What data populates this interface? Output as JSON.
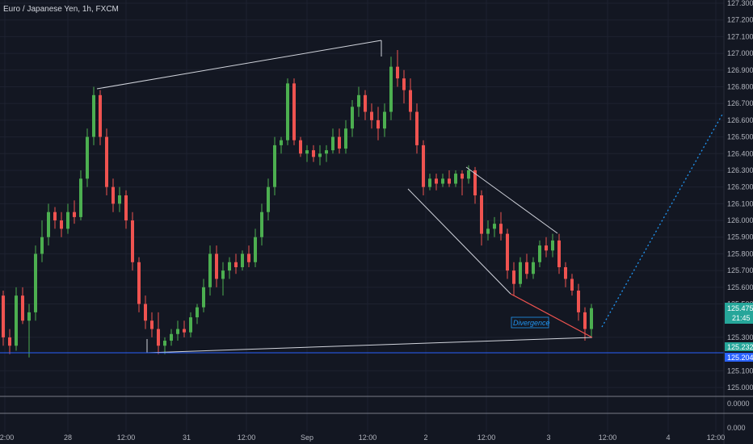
{
  "header": {
    "symbol_line": "Euro / Japanese Yen, 1h, FXCM"
  },
  "colors": {
    "background": "#131722",
    "grid": "#1e2230",
    "up": "#26a69a",
    "up_alt": "#4caf50",
    "down": "#ef5350",
    "price_tag_green": "#26a69a",
    "price_tag_blue": "#2962ff",
    "trendline": "#d1d4dc",
    "divergence": "#ef5350",
    "projection": "#2196f3"
  },
  "annotations": {
    "divergence_label": "Divergence"
  },
  "price_tags": {
    "last_price": "125.475",
    "countdown": "21:45",
    "level_a": "125.232",
    "level_b": "125.204"
  },
  "chart_data": {
    "type": "candlestick",
    "title": "Euro / Japanese Yen, 1h, FXCM",
    "y_axis_ticks": [
      "127.300",
      "127.200",
      "127.100",
      "127.000",
      "126.900",
      "126.800",
      "126.700",
      "126.600",
      "126.500",
      "126.400",
      "126.300",
      "126.200",
      "126.100",
      "126.000",
      "125.900",
      "125.800",
      "125.700",
      "125.600",
      "125.500",
      "125.300",
      "125.100",
      "125.000"
    ],
    "x_axis_ticks": [
      "12:00",
      "28",
      "12:00",
      "31",
      "12:00",
      "Sep",
      "12:00",
      "2",
      "12:00",
      "3",
      "12:00",
      "4",
      "12:00"
    ],
    "ylim": [
      124.95,
      127.35
    ],
    "oscillator_ticks": [
      "0.0000",
      "0.000"
    ],
    "candles": [
      {
        "o": 125.55,
        "h": 125.58,
        "l": 125.25,
        "c": 125.3
      },
      {
        "o": 125.3,
        "h": 125.35,
        "l": 125.2,
        "c": 125.25
      },
      {
        "o": 125.25,
        "h": 125.6,
        "l": 125.22,
        "c": 125.55
      },
      {
        "o": 125.55,
        "h": 125.6,
        "l": 125.38,
        "c": 125.4
      },
      {
        "o": 125.4,
        "h": 125.5,
        "l": 125.18,
        "c": 125.45
      },
      {
        "o": 125.45,
        "h": 125.85,
        "l": 125.4,
        "c": 125.8
      },
      {
        "o": 125.8,
        "h": 126.0,
        "l": 125.75,
        "c": 125.9
      },
      {
        "o": 125.9,
        "h": 126.1,
        "l": 125.85,
        "c": 126.05
      },
      {
        "o": 126.05,
        "h": 126.08,
        "l": 125.95,
        "c": 126.0
      },
      {
        "o": 126.0,
        "h": 126.05,
        "l": 125.9,
        "c": 125.95
      },
      {
        "o": 125.95,
        "h": 126.1,
        "l": 125.92,
        "c": 126.05
      },
      {
        "o": 126.05,
        "h": 126.12,
        "l": 125.98,
        "c": 126.02
      },
      {
        "o": 126.02,
        "h": 126.3,
        "l": 126.0,
        "c": 126.25
      },
      {
        "o": 126.25,
        "h": 126.55,
        "l": 126.2,
        "c": 126.5
      },
      {
        "o": 126.5,
        "h": 126.8,
        "l": 126.45,
        "c": 126.75
      },
      {
        "o": 126.75,
        "h": 126.78,
        "l": 126.45,
        "c": 126.5
      },
      {
        "o": 126.5,
        "h": 126.55,
        "l": 126.15,
        "c": 126.2
      },
      {
        "o": 126.2,
        "h": 126.25,
        "l": 126.05,
        "c": 126.1
      },
      {
        "o": 126.1,
        "h": 126.2,
        "l": 126.05,
        "c": 126.15
      },
      {
        "o": 126.15,
        "h": 126.18,
        "l": 125.95,
        "c": 126.0
      },
      {
        "o": 126.0,
        "h": 126.05,
        "l": 125.7,
        "c": 125.75
      },
      {
        "o": 125.75,
        "h": 125.78,
        "l": 125.45,
        "c": 125.5
      },
      {
        "o": 125.5,
        "h": 125.55,
        "l": 125.35,
        "c": 125.4
      },
      {
        "o": 125.4,
        "h": 125.45,
        "l": 125.3,
        "c": 125.35
      },
      {
        "o": 125.35,
        "h": 125.45,
        "l": 125.2,
        "c": 125.25
      },
      {
        "o": 125.25,
        "h": 125.3,
        "l": 125.2,
        "c": 125.28
      },
      {
        "o": 125.28,
        "h": 125.35,
        "l": 125.25,
        "c": 125.32
      },
      {
        "o": 125.32,
        "h": 125.4,
        "l": 125.28,
        "c": 125.35
      },
      {
        "o": 125.35,
        "h": 125.4,
        "l": 125.3,
        "c": 125.33
      },
      {
        "o": 125.33,
        "h": 125.45,
        "l": 125.3,
        "c": 125.42
      },
      {
        "o": 125.42,
        "h": 125.5,
        "l": 125.38,
        "c": 125.48
      },
      {
        "o": 125.48,
        "h": 125.65,
        "l": 125.45,
        "c": 125.6
      },
      {
        "o": 125.6,
        "h": 125.85,
        "l": 125.55,
        "c": 125.8
      },
      {
        "o": 125.8,
        "h": 125.85,
        "l": 125.6,
        "c": 125.65
      },
      {
        "o": 125.65,
        "h": 125.75,
        "l": 125.55,
        "c": 125.7
      },
      {
        "o": 125.7,
        "h": 125.78,
        "l": 125.65,
        "c": 125.75
      },
      {
        "o": 125.75,
        "h": 125.8,
        "l": 125.68,
        "c": 125.72
      },
      {
        "o": 125.72,
        "h": 125.82,
        "l": 125.7,
        "c": 125.8
      },
      {
        "o": 125.8,
        "h": 125.85,
        "l": 125.72,
        "c": 125.75
      },
      {
        "o": 125.75,
        "h": 125.95,
        "l": 125.72,
        "c": 125.9
      },
      {
        "o": 125.9,
        "h": 126.1,
        "l": 125.85,
        "c": 126.05
      },
      {
        "o": 126.05,
        "h": 126.25,
        "l": 126.0,
        "c": 126.2
      },
      {
        "o": 126.2,
        "h": 126.5,
        "l": 126.15,
        "c": 126.45
      },
      {
        "o": 126.45,
        "h": 126.5,
        "l": 126.4,
        "c": 126.48
      },
      {
        "o": 126.48,
        "h": 126.85,
        "l": 126.45,
        "c": 126.82
      },
      {
        "o": 126.82,
        "h": 126.85,
        "l": 126.45,
        "c": 126.48
      },
      {
        "o": 126.48,
        "h": 126.5,
        "l": 126.38,
        "c": 126.4
      },
      {
        "o": 126.4,
        "h": 126.45,
        "l": 126.35,
        "c": 126.42
      },
      {
        "o": 126.42,
        "h": 126.45,
        "l": 126.35,
        "c": 126.38
      },
      {
        "o": 126.38,
        "h": 126.45,
        "l": 126.33,
        "c": 126.4
      },
      {
        "o": 126.4,
        "h": 126.45,
        "l": 126.35,
        "c": 126.42
      },
      {
        "o": 126.42,
        "h": 126.55,
        "l": 126.4,
        "c": 126.5
      },
      {
        "o": 126.5,
        "h": 126.55,
        "l": 126.4,
        "c": 126.43
      },
      {
        "o": 126.43,
        "h": 126.6,
        "l": 126.4,
        "c": 126.55
      },
      {
        "o": 126.55,
        "h": 126.72,
        "l": 126.5,
        "c": 126.68
      },
      {
        "o": 126.68,
        "h": 126.8,
        "l": 126.62,
        "c": 126.75
      },
      {
        "o": 126.75,
        "h": 126.78,
        "l": 126.6,
        "c": 126.65
      },
      {
        "o": 126.65,
        "h": 126.7,
        "l": 126.55,
        "c": 126.6
      },
      {
        "o": 126.6,
        "h": 126.68,
        "l": 126.48,
        "c": 126.55
      },
      {
        "o": 126.55,
        "h": 126.7,
        "l": 126.5,
        "c": 126.65
      },
      {
        "o": 126.65,
        "h": 126.98,
        "l": 126.6,
        "c": 126.92
      },
      {
        "o": 126.92,
        "h": 127.02,
        "l": 126.8,
        "c": 126.85
      },
      {
        "o": 126.85,
        "h": 126.9,
        "l": 126.7,
        "c": 126.78
      },
      {
        "o": 126.78,
        "h": 126.85,
        "l": 126.6,
        "c": 126.65
      },
      {
        "o": 126.65,
        "h": 126.7,
        "l": 126.4,
        "c": 126.45
      },
      {
        "o": 126.45,
        "h": 126.48,
        "l": 126.15,
        "c": 126.2
      },
      {
        "o": 126.2,
        "h": 126.28,
        "l": 126.18,
        "c": 126.25
      },
      {
        "o": 126.25,
        "h": 126.28,
        "l": 126.18,
        "c": 126.22
      },
      {
        "o": 126.22,
        "h": 126.28,
        "l": 126.2,
        "c": 126.25
      },
      {
        "o": 126.25,
        "h": 126.3,
        "l": 126.2,
        "c": 126.22
      },
      {
        "o": 126.22,
        "h": 126.3,
        "l": 126.2,
        "c": 126.28
      },
      {
        "o": 126.28,
        "h": 126.3,
        "l": 126.15,
        "c": 126.25
      },
      {
        "o": 126.25,
        "h": 126.33,
        "l": 126.22,
        "c": 126.3
      },
      {
        "o": 126.3,
        "h": 126.32,
        "l": 126.1,
        "c": 126.15
      },
      {
        "o": 126.15,
        "h": 126.18,
        "l": 125.85,
        "c": 125.92
      },
      {
        "o": 125.92,
        "h": 126.0,
        "l": 125.88,
        "c": 125.95
      },
      {
        "o": 125.95,
        "h": 126.02,
        "l": 125.9,
        "c": 125.98
      },
      {
        "o": 125.98,
        "h": 126.05,
        "l": 125.88,
        "c": 125.92
      },
      {
        "o": 125.92,
        "h": 125.95,
        "l": 125.65,
        "c": 125.7
      },
      {
        "o": 125.7,
        "h": 125.75,
        "l": 125.55,
        "c": 125.62
      },
      {
        "o": 125.62,
        "h": 125.78,
        "l": 125.6,
        "c": 125.75
      },
      {
        "o": 125.75,
        "h": 125.8,
        "l": 125.65,
        "c": 125.68
      },
      {
        "o": 125.68,
        "h": 125.78,
        "l": 125.65,
        "c": 125.75
      },
      {
        "o": 125.75,
        "h": 125.88,
        "l": 125.72,
        "c": 125.85
      },
      {
        "o": 125.85,
        "h": 125.9,
        "l": 125.78,
        "c": 125.82
      },
      {
        "o": 125.82,
        "h": 125.92,
        "l": 125.78,
        "c": 125.88
      },
      {
        "o": 125.88,
        "h": 125.92,
        "l": 125.68,
        "c": 125.72
      },
      {
        "o": 125.72,
        "h": 125.75,
        "l": 125.6,
        "c": 125.65
      },
      {
        "o": 125.65,
        "h": 125.68,
        "l": 125.55,
        "c": 125.58
      },
      {
        "o": 125.58,
        "h": 125.62,
        "l": 125.4,
        "c": 125.45
      },
      {
        "o": 125.45,
        "h": 125.48,
        "l": 125.28,
        "c": 125.35
      },
      {
        "o": 125.35,
        "h": 125.5,
        "l": 125.3,
        "c": 125.475
      }
    ]
  }
}
